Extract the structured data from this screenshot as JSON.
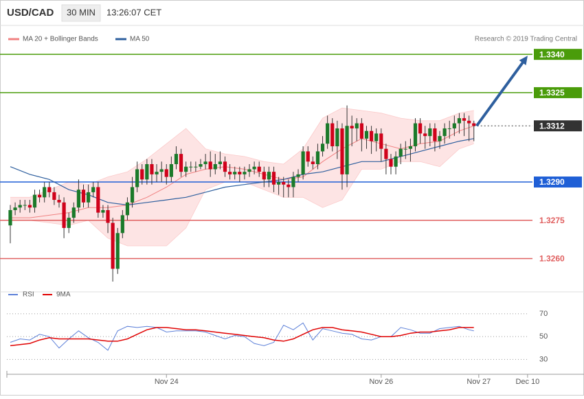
{
  "chart_data": {
    "type": "candlestick",
    "title": "USD/CAD",
    "subtitle": "30 MIN",
    "time": "13:26:07 CET",
    "credit": "Research © 2019 Trading Central",
    "up_color": "#1b7a2a",
    "down_color": "#d0021b",
    "xlim": [
      -0.7,
      106.3
    ],
    "ylim": [
      1.3251,
      1.335
    ],
    "xticks": [
      {
        "value": 32,
        "label": "Nov 24"
      },
      {
        "value": 76,
        "label": "Nov 26"
      },
      {
        "value": 96,
        "label": "Nov 27"
      },
      {
        "value": 106,
        "label": "Dec 10"
      }
    ],
    "open": [
      1.3273,
      1.3279,
      1.328,
      1.3281,
      1.3281,
      1.328,
      1.3285,
      1.3284,
      1.3288,
      1.3286,
      1.3283,
      1.3282,
      1.3272,
      1.3276,
      1.328,
      1.3287,
      1.3282,
      1.3286,
      1.3288,
      1.3278,
      1.3279,
      1.3274,
      1.3256,
      1.327,
      1.3277,
      1.3282,
      1.3288,
      1.3295,
      1.3291,
      1.3297,
      1.3293,
      1.3294,
      1.3295,
      1.3292,
      1.3297,
      1.3301,
      1.3294,
      1.3296,
      1.3296,
      1.3296,
      1.3297,
      1.3298,
      1.3295,
      1.3297,
      1.3298,
      1.3294,
      1.3293,
      1.3294,
      1.3293,
      1.3294,
      1.3295,
      1.3296,
      1.3294,
      1.3291,
      1.3294,
      1.3289,
      1.329,
      1.3289,
      1.3288,
      1.3292,
      1.3293,
      1.3302,
      1.3298,
      1.3297,
      1.3302,
      1.3305,
      1.3313,
      1.3304,
      1.3311,
      1.3293,
      1.3312,
      1.3311,
      1.3313,
      1.3307,
      1.331,
      1.3306,
      1.3309,
      1.3303,
      1.3299,
      1.3296,
      1.33,
      1.3303,
      1.3303,
      1.3304,
      1.3313,
      1.3309,
      1.3308,
      1.3311,
      1.3306,
      1.3308,
      1.3311,
      1.3311,
      1.3313,
      1.3315,
      1.3314,
      1.3313
    ],
    "high": [
      1.3281,
      1.3282,
      1.3283,
      1.3283,
      1.3283,
      1.3287,
      1.3287,
      1.329,
      1.329,
      1.3288,
      1.3285,
      1.3284,
      1.3278,
      1.3282,
      1.3291,
      1.3289,
      1.3289,
      1.329,
      1.329,
      1.3281,
      1.3281,
      1.3276,
      1.3272,
      1.3279,
      1.3284,
      1.3292,
      1.3298,
      1.3297,
      1.3299,
      1.3299,
      1.3297,
      1.3298,
      1.3297,
      1.33,
      1.3304,
      1.3303,
      1.3298,
      1.3298,
      1.3298,
      1.3299,
      1.3301,
      1.3302,
      1.3301,
      1.3302,
      1.33,
      1.3297,
      1.3296,
      1.3296,
      1.3296,
      1.3297,
      1.3298,
      1.3298,
      1.3296,
      1.3296,
      1.3296,
      1.3292,
      1.3292,
      1.3291,
      1.3294,
      1.3295,
      1.3304,
      1.3304,
      1.33,
      1.3305,
      1.3308,
      1.3316,
      1.3315,
      1.3314,
      1.3313,
      1.332,
      1.3316,
      1.3315,
      1.3315,
      1.3312,
      1.3312,
      1.3311,
      1.3311,
      1.3305,
      1.3301,
      1.3302,
      1.3305,
      1.3306,
      1.3307,
      1.3315,
      1.3315,
      1.3312,
      1.3313,
      1.3313,
      1.331,
      1.3313,
      1.3314,
      1.3316,
      1.3317,
      1.3317,
      1.3316,
      1.3314
    ],
    "low": [
      1.3266,
      1.3277,
      1.3278,
      1.3279,
      1.3278,
      1.3278,
      1.3282,
      1.3282,
      1.3284,
      1.3281,
      1.328,
      1.3268,
      1.327,
      1.3274,
      1.3278,
      1.328,
      1.328,
      1.3284,
      1.3276,
      1.3276,
      1.327,
      1.3251,
      1.3254,
      1.3268,
      1.3275,
      1.328,
      1.3286,
      1.3289,
      1.3289,
      1.3289,
      1.329,
      1.329,
      1.3289,
      1.329,
      1.3295,
      1.3292,
      1.3292,
      1.3294,
      1.3294,
      1.3295,
      1.3295,
      1.3292,
      1.3293,
      1.3295,
      1.3292,
      1.3291,
      1.3291,
      1.329,
      1.3291,
      1.3292,
      1.3293,
      1.3292,
      1.3288,
      1.3288,
      1.3286,
      1.3285,
      1.3284,
      1.3284,
      1.3284,
      1.329,
      1.3291,
      1.3296,
      1.3295,
      1.3295,
      1.33,
      1.3303,
      1.3302,
      1.3299,
      1.3287,
      1.3288,
      1.3304,
      1.3306,
      1.3302,
      1.3303,
      1.3301,
      1.3302,
      1.3298,
      1.3293,
      1.3293,
      1.3293,
      1.3297,
      1.3299,
      1.3298,
      1.3302,
      1.3305,
      1.3303,
      1.3304,
      1.3302,
      1.3303,
      1.3305,
      1.3307,
      1.3308,
      1.3309,
      1.3308,
      1.3306,
      1.3306
    ],
    "close": [
      1.3279,
      1.328,
      1.3281,
      1.3281,
      1.328,
      1.3285,
      1.3284,
      1.3288,
      1.3286,
      1.3283,
      1.3282,
      1.3272,
      1.3276,
      1.328,
      1.3287,
      1.3282,
      1.3286,
      1.3288,
      1.3278,
      1.3279,
      1.3274,
      1.3256,
      1.327,
      1.3277,
      1.3282,
      1.3288,
      1.3295,
      1.3291,
      1.3297,
      1.3293,
      1.3294,
      1.3295,
      1.3292,
      1.3297,
      1.3301,
      1.3294,
      1.3296,
      1.3296,
      1.3296,
      1.3297,
      1.3298,
      1.3295,
      1.3297,
      1.3298,
      1.3294,
      1.3293,
      1.3294,
      1.3293,
      1.3294,
      1.3295,
      1.3296,
      1.3294,
      1.3291,
      1.3294,
      1.3289,
      1.329,
      1.3289,
      1.3288,
      1.3292,
      1.3293,
      1.3302,
      1.3298,
      1.3297,
      1.3302,
      1.3305,
      1.3313,
      1.3304,
      1.3311,
      1.3293,
      1.3312,
      1.3311,
      1.3313,
      1.3307,
      1.331,
      1.3306,
      1.3309,
      1.3303,
      1.3299,
      1.3296,
      1.33,
      1.3303,
      1.3303,
      1.3304,
      1.3313,
      1.3309,
      1.3308,
      1.3311,
      1.3306,
      1.3308,
      1.3311,
      1.3311,
      1.3313,
      1.3315,
      1.3314,
      1.3313,
      1.3312
    ],
    "bollinger": {
      "name": "MA 20 + Bollinger Bands",
      "color": "#f08080",
      "fill": "#fde4e4",
      "x": [
        0,
        4,
        8,
        12,
        16,
        20,
        24,
        28,
        32,
        36,
        40,
        44,
        48,
        52,
        56,
        60,
        64,
        68,
        72,
        76,
        80,
        84,
        88,
        92,
        95
      ],
      "upper": [
        1.3284,
        1.3284,
        1.3287,
        1.329,
        1.3289,
        1.3292,
        1.3294,
        1.3299,
        1.3305,
        1.3311,
        1.3303,
        1.3301,
        1.33,
        1.3298,
        1.3297,
        1.3303,
        1.3315,
        1.3319,
        1.3318,
        1.3317,
        1.3315,
        1.3314,
        1.3314,
        1.3317,
        1.3318
      ],
      "middle": [
        1.3276,
        1.3276,
        1.3277,
        1.3278,
        1.328,
        1.328,
        1.3281,
        1.3284,
        1.3288,
        1.3293,
        1.3295,
        1.3296,
        1.3295,
        1.3293,
        1.3291,
        1.3292,
        1.3298,
        1.3303,
        1.3307,
        1.3305,
        1.3303,
        1.3305,
        1.3306,
        1.331,
        1.3312
      ],
      "lower": [
        1.3275,
        1.3275,
        1.3274,
        1.3273,
        1.3275,
        1.3268,
        1.3265,
        1.3265,
        1.3265,
        1.3272,
        1.3287,
        1.329,
        1.329,
        1.3287,
        1.3284,
        1.3284,
        1.328,
        1.3283,
        1.3295,
        1.3295,
        1.3298,
        1.3298,
        1.3296,
        1.3303,
        1.3305
      ]
    },
    "ma50": {
      "name": "MA 50",
      "color": "#2e5f9e",
      "x": [
        0,
        4,
        8,
        12,
        16,
        20,
        24,
        28,
        32,
        36,
        40,
        44,
        48,
        52,
        56,
        60,
        64,
        68,
        72,
        76,
        80,
        84,
        88,
        92,
        95
      ],
      "values": [
        1.3296,
        1.3293,
        1.3291,
        1.3287,
        1.3285,
        1.3282,
        1.3281,
        1.3282,
        1.3283,
        1.3284,
        1.3286,
        1.3288,
        1.3289,
        1.329,
        1.3291,
        1.3293,
        1.3294,
        1.3296,
        1.3298,
        1.3298,
        1.33,
        1.3302,
        1.3304,
        1.3306,
        1.3307
      ]
    },
    "levels": [
      {
        "value": 1.334,
        "label": "1.3340",
        "color": "#4a9c0a",
        "style": "solid",
        "label_style": "box"
      },
      {
        "value": 1.3325,
        "label": "1.3325",
        "color": "#4a9c0a",
        "style": "solid",
        "label_style": "box"
      },
      {
        "value": 1.3312,
        "label": "1.3312",
        "color": "#333333",
        "style": "dotted",
        "label_style": "box"
      },
      {
        "value": 1.329,
        "label": "1.3290",
        "color": "#1f5fd6",
        "style": "solid",
        "label_style": "box"
      },
      {
        "value": 1.3275,
        "label": "1.3275",
        "color": "#e06060",
        "style": "solid",
        "label_style": "text"
      },
      {
        "value": 1.326,
        "label": "1.3260",
        "color": "#e06060",
        "style": "solid",
        "label_style": "text"
      }
    ],
    "arrow_color": "#2e5f9e",
    "indicator": {
      "ylim": [
        20,
        85
      ],
      "yticks": [
        30,
        50,
        70
      ],
      "grid": true,
      "x": [
        0,
        2,
        4,
        6,
        8,
        10,
        12,
        14,
        16,
        18,
        20,
        22,
        24,
        26,
        28,
        30,
        32,
        34,
        36,
        38,
        40,
        42,
        44,
        46,
        48,
        50,
        52,
        54,
        56,
        58,
        60,
        62,
        64,
        66,
        68,
        70,
        72,
        74,
        76,
        78,
        80,
        82,
        84,
        86,
        88,
        90,
        92,
        94,
        95
      ],
      "series": [
        {
          "name": "RSI",
          "color": "#5b7fd8",
          "values": [
            45,
            48,
            47,
            52,
            50,
            40,
            48,
            55,
            49,
            45,
            38,
            55,
            59,
            58,
            59,
            58,
            54,
            55,
            55,
            55,
            54,
            51,
            48,
            51,
            50,
            44,
            42,
            45,
            60,
            56,
            62,
            47,
            57,
            55,
            53,
            52,
            48,
            47,
            50,
            50,
            58,
            56,
            53,
            53,
            57,
            58,
            59,
            56,
            55
          ]
        },
        {
          "name": "9MA",
          "color": "#e00000",
          "values": [
            42,
            43,
            44,
            47,
            49,
            48,
            48,
            48,
            48,
            47,
            46,
            46,
            48,
            52,
            56,
            58,
            58,
            57,
            56,
            56,
            55,
            54,
            53,
            52,
            51,
            50,
            49,
            47,
            46,
            48,
            52,
            56,
            58,
            58,
            56,
            55,
            54,
            52,
            50,
            50,
            51,
            53,
            54,
            54,
            55,
            56,
            58,
            58,
            58
          ]
        }
      ]
    }
  }
}
